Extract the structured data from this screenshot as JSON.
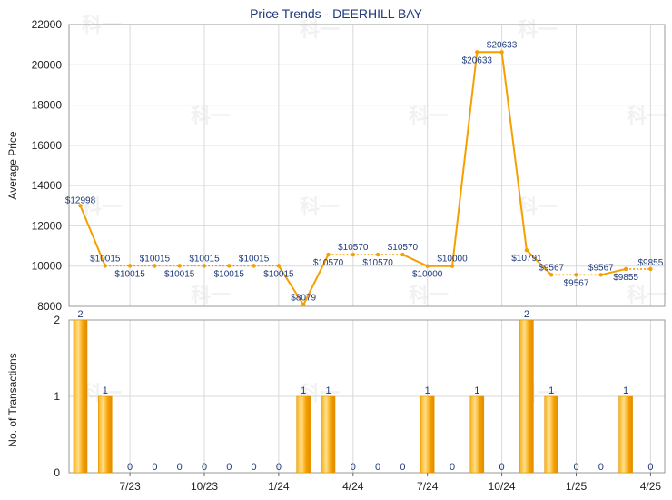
{
  "chart_data": [
    {
      "type": "line",
      "title": "Price Trends - DEERHILL BAY",
      "ylabel": "Average Price",
      "ylim": [
        8000,
        22000
      ],
      "yticks": [
        8000,
        10000,
        12000,
        14000,
        16000,
        18000,
        20000,
        22000
      ],
      "grid": true,
      "color": "#f5a000",
      "points": [
        12998,
        10015,
        10015,
        10015,
        10015,
        10015,
        10015,
        10015,
        10015,
        8079,
        10570,
        10570,
        10570,
        10570,
        10000,
        10000,
        20633,
        20633,
        10791,
        9567,
        9567,
        9567,
        9855,
        9855
      ],
      "labels": [
        "$12998",
        "$10015",
        "$10015",
        "$10015",
        "$10015",
        "$10015",
        "$10015",
        "$10015",
        "$10015",
        "$8079",
        "$10570",
        "$10570",
        "$10570",
        "$10570",
        "$10000",
        "$10000",
        "$20633",
        "$20633",
        "$10791",
        "$9567",
        "$9567",
        "$9567",
        "$9855",
        "$9855"
      ],
      "dotted_segments": [
        [
          1,
          8
        ],
        [
          10,
          13
        ],
        [
          19,
          21
        ],
        [
          22,
          23
        ]
      ]
    },
    {
      "type": "bar",
      "ylabel": "No. of Transactions",
      "ylim": [
        0,
        2
      ],
      "yticks": [
        0,
        1,
        2
      ],
      "color": "#f5a000",
      "values": [
        2,
        1,
        0,
        0,
        0,
        0,
        0,
        0,
        0,
        1,
        1,
        0,
        0,
        0,
        1,
        0,
        1,
        0,
        2,
        1,
        0,
        0,
        1,
        0
      ],
      "labels": [
        "2",
        "1",
        "0",
        "0",
        "0",
        "0",
        "0",
        "0",
        "0",
        "1",
        "1",
        "0",
        "0",
        "0",
        "1",
        "0",
        "1",
        "0",
        "2",
        "1",
        "0",
        "0",
        "1",
        "0"
      ],
      "xticks": [
        {
          "index": 2,
          "label": "7/23"
        },
        {
          "index": 5,
          "label": "10/23"
        },
        {
          "index": 8,
          "label": "1/24"
        },
        {
          "index": 11,
          "label": "4/24"
        },
        {
          "index": 14,
          "label": "7/24"
        },
        {
          "index": 17,
          "label": "10/24"
        },
        {
          "index": 20,
          "label": "1/25"
        },
        {
          "index": 23,
          "label": "4/25"
        }
      ]
    }
  ]
}
